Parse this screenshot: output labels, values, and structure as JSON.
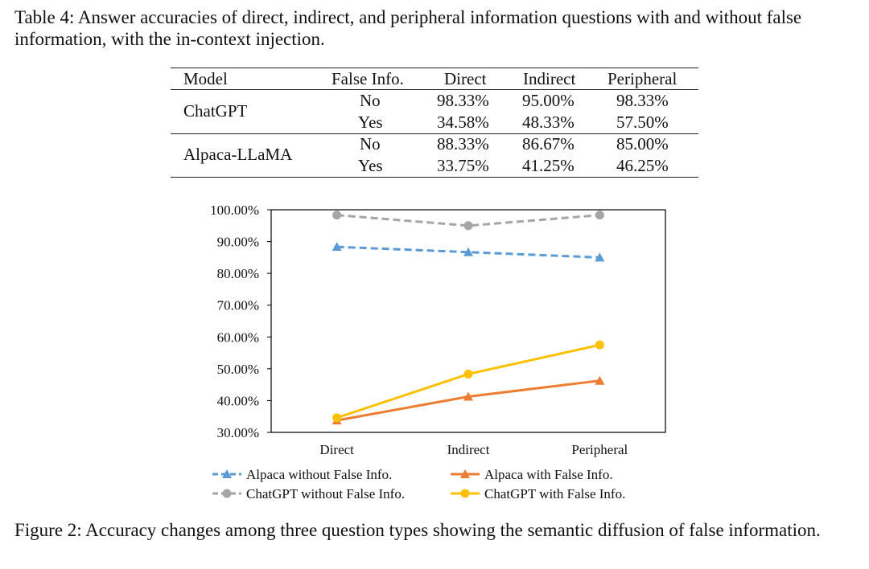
{
  "table_caption": "Table 4:  Answer accuracies of direct, indirect, and peripheral information questions with and without false information, with the in-context injection.",
  "table": {
    "headers": [
      "Model",
      "False Info.",
      "Direct",
      "Indirect",
      "Peripheral"
    ],
    "groups": [
      {
        "model": "ChatGPT",
        "rows": [
          {
            "false_info": "No",
            "direct": "98.33%",
            "indirect": "95.00%",
            "peripheral": "98.33%"
          },
          {
            "false_info": "Yes",
            "direct": "34.58%",
            "indirect": "48.33%",
            "peripheral": "57.50%"
          }
        ]
      },
      {
        "model": "Alpaca-LLaMA",
        "rows": [
          {
            "false_info": "No",
            "direct": "88.33%",
            "indirect": "86.67%",
            "peripheral": "85.00%"
          },
          {
            "false_info": "Yes",
            "direct": "33.75%",
            "indirect": "41.25%",
            "peripheral": "46.25%"
          }
        ]
      }
    ]
  },
  "chart_data": {
    "type": "line",
    "categories": [
      "Direct",
      "Indirect",
      "Peripheral"
    ],
    "ylim": [
      30,
      100
    ],
    "yticks": [
      "100.00%",
      "90.00%",
      "80.00%",
      "70.00%",
      "60.00%",
      "50.00%",
      "40.00%",
      "30.00%"
    ],
    "ytick_values": [
      100,
      90,
      80,
      70,
      60,
      50,
      40,
      30
    ],
    "grid": false,
    "legend_position": "bottom",
    "series": [
      {
        "name": "Alpaca without False Info.",
        "values": [
          88.33,
          86.67,
          85.0
        ],
        "color": "#5B9BD5",
        "dashed": true,
        "marker": "triangle"
      },
      {
        "name": "Alpaca with False Info.",
        "values": [
          33.75,
          41.25,
          46.25
        ],
        "color": "#ED7D31",
        "dashed": false,
        "marker": "triangle"
      },
      {
        "name": "ChatGPT without False Info.",
        "values": [
          98.33,
          95.0,
          98.33
        ],
        "color": "#A5A5A5",
        "dashed": true,
        "marker": "circle"
      },
      {
        "name": "ChatGPT with False Info.",
        "values": [
          34.58,
          48.33,
          57.5
        ],
        "color": "#FFC000",
        "dashed": false,
        "marker": "circle"
      }
    ]
  },
  "figure_caption": "Figure 2: Accuracy changes among three question types showing the semantic diffusion of false information."
}
